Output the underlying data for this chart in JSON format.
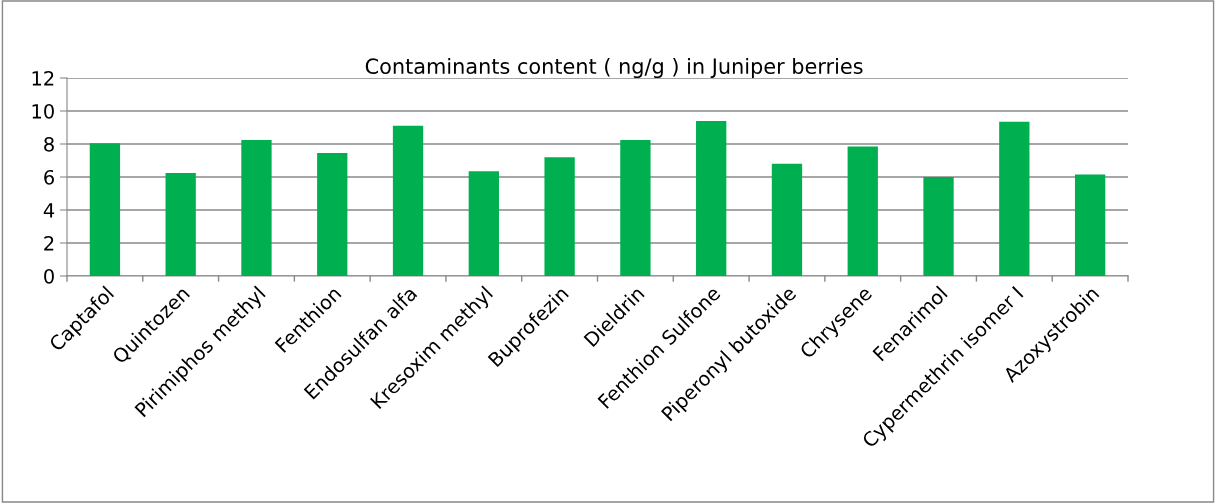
{
  "chart_data": {
    "type": "bar",
    "title": "Contaminants content ( ng/g ) in Juniper berries",
    "categories": [
      "Captafol",
      "Quintozen",
      "Pirimiphos methyl",
      "Fenthion",
      "Endosulfan alfa",
      "Kresoxim methyl",
      "Buprofezin",
      "Dieldrin",
      "Fenthion Sulfone",
      "Piperonyl butoxide",
      "Chrysene",
      "Fenarimol",
      "Cypermethrin isomer I",
      "Azoxystrobin"
    ],
    "values": [
      8.05,
      6.25,
      8.25,
      7.45,
      9.1,
      6.35,
      7.2,
      8.25,
      9.4,
      6.8,
      7.85,
      6.0,
      9.35,
      6.15
    ],
    "color": "#00b050",
    "ylim": [
      0,
      12
    ],
    "yticks": [
      0,
      2,
      4,
      6,
      8,
      10,
      12
    ],
    "grid": "y",
    "legend": false
  }
}
